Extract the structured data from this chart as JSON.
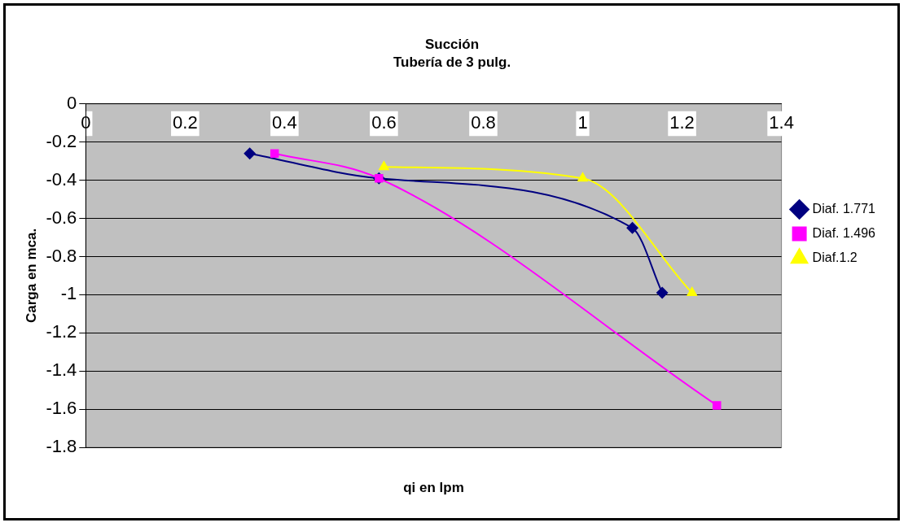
{
  "chart_data": {
    "type": "line",
    "title": "Succión",
    "subtitle": "Tubería de 3 pulg.",
    "xlabel": "qi en lpm",
    "ylabel": "Carga en mca.",
    "xlim": [
      0,
      1.4
    ],
    "xticks": [
      0,
      0.2,
      0.4,
      0.6,
      0.8,
      1,
      1.2,
      1.4
    ],
    "ylim": [
      -1.8,
      0
    ],
    "yticks": [
      -1.8,
      -1.6,
      -1.4,
      -1.2,
      -1,
      -0.8,
      -0.6,
      -0.4,
      -0.2,
      0
    ],
    "grid": "y",
    "legend": "right",
    "line_style": "solid",
    "series": [
      {
        "name": "Diaf. 1.771",
        "color": "#000080",
        "marker": "diamond",
        "x": [
          0.33,
          0.59,
          1.1,
          1.16
        ],
        "values": [
          -0.26,
          -0.39,
          -0.65,
          -0.99
        ]
      },
      {
        "name": "Diaf. 1.496",
        "color": "#ff00ff",
        "marker": "square",
        "x": [
          0.38,
          0.59,
          1.27
        ],
        "values": [
          -0.26,
          -0.39,
          -1.58
        ]
      },
      {
        "name": "Diaf.1.2",
        "color": "#ffff00",
        "marker": "triangle",
        "x": [
          0.6,
          1,
          1.22
        ],
        "values": [
          -0.33,
          -0.39,
          -0.99
        ]
      }
    ]
  }
}
